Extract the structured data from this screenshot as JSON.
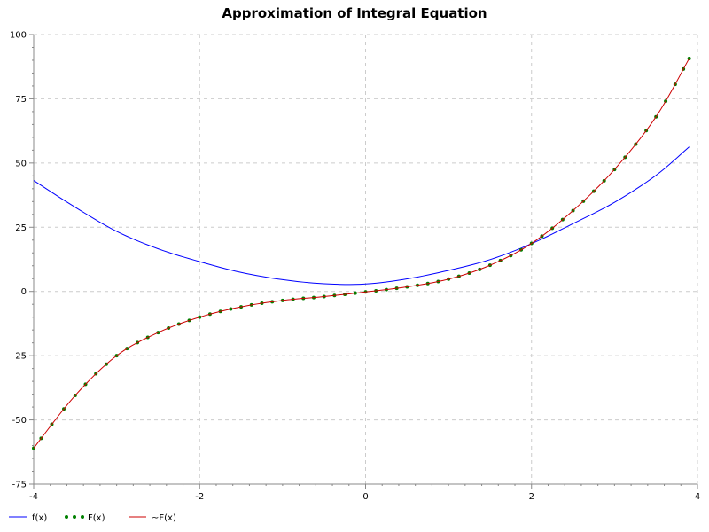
{
  "chart_data": {
    "type": "line",
    "title": "Approximation of Integral Equation",
    "xlabel": "",
    "ylabel": "",
    "xlim": [
      -4,
      4
    ],
    "ylim": [
      -75,
      100
    ],
    "x_ticks": [
      -4,
      -2,
      0,
      2,
      4
    ],
    "y_ticks": [
      -75,
      -50,
      -25,
      0,
      25,
      50,
      75,
      100
    ],
    "x_tick_labels": [
      "-4",
      "-2",
      "0",
      "2",
      "4"
    ],
    "y_tick_labels": [
      "-75",
      "-50",
      "-25",
      "0",
      "25",
      "50",
      "75",
      "100"
    ],
    "grid": true,
    "legend_position": "bottom-left",
    "series": [
      {
        "name": "f(x)",
        "style": "line",
        "color": "#0000ff",
        "x": [
          -4.0,
          -3.5,
          -3.0,
          -2.5,
          -2.0,
          -1.5,
          -1.0,
          -0.5,
          0.0,
          0.5,
          1.0,
          1.5,
          2.0,
          2.5,
          3.0,
          3.5,
          3.9
        ],
        "y": [
          43.2,
          32.8,
          23.4,
          16.6,
          11.6,
          7.4,
          4.6,
          3.0,
          2.9,
          4.9,
          8.2,
          12.4,
          18.6,
          26.4,
          34.7,
          45.2,
          56.3
        ]
      },
      {
        "name": "F(x)",
        "style": "dotted",
        "color": "#008000",
        "x": [
          -4.0,
          -3.5,
          -3.0,
          -2.5,
          -2.0,
          -1.5,
          -1.0,
          -0.5,
          0.0,
          0.5,
          1.0,
          1.5,
          2.0,
          2.5,
          3.0,
          3.5,
          3.9
        ],
        "y": [
          -61.0,
          -40.5,
          -25.0,
          -16.0,
          -10.0,
          -6.0,
          -3.5,
          -2.0,
          -0.2,
          1.8,
          4.8,
          10.2,
          18.7,
          31.5,
          47.5,
          68.0,
          90.7
        ]
      },
      {
        "name": "~F(x)",
        "style": "line",
        "color": "#cc0000",
        "x": [
          -4.0,
          -3.5,
          -3.0,
          -2.5,
          -2.0,
          -1.5,
          -1.0,
          -0.5,
          0.0,
          0.5,
          1.0,
          1.5,
          2.0,
          2.5,
          3.0,
          3.5,
          3.9
        ],
        "y": [
          -61.0,
          -40.5,
          -25.0,
          -16.0,
          -10.0,
          -6.0,
          -3.5,
          -2.0,
          -0.2,
          1.8,
          4.8,
          10.2,
          18.7,
          31.5,
          47.5,
          68.0,
          90.7
        ]
      }
    ]
  }
}
